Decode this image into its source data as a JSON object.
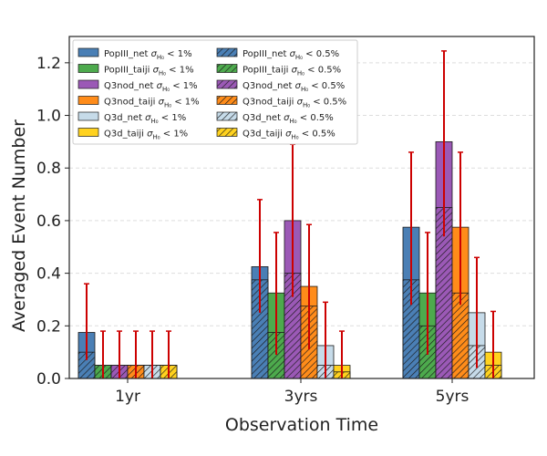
{
  "chart_data": {
    "type": "bar",
    "xlabel": "Observation Time",
    "ylabel": "Averaged Event Number",
    "categories": [
      "1yr",
      "3yrs",
      "5yrs"
    ],
    "ylim": [
      0,
      1.3
    ],
    "yticks": [
      "0.0",
      "0.2",
      "0.4",
      "0.6",
      "0.8",
      "1.0",
      "1.2"
    ],
    "grid": "horizontal-dashed",
    "legend_position": "top-left",
    "error_bar_color": "#cc0000",
    "series": [
      {
        "key": "PopIII_net",
        "name_prefix": "PopIII_net",
        "color": "#4a7fb5",
        "values_1pct": [
          0.175,
          0.425,
          0.575
        ],
        "values_half_pct": [
          0.1,
          0.375,
          0.375
        ],
        "err_low": [
          0.07,
          0.25,
          0.28
        ],
        "err_high": [
          0.36,
          0.68,
          0.86
        ]
      },
      {
        "key": "PopIII_taiji",
        "name_prefix": "PopIII_taiji",
        "color": "#4daa4d",
        "values_1pct": [
          0.05,
          0.325,
          0.325
        ],
        "values_half_pct": [
          0.05,
          0.175,
          0.2
        ],
        "err_low": [
          0.0,
          0.09,
          0.09
        ],
        "err_high": [
          0.18,
          0.555,
          0.555
        ]
      },
      {
        "key": "Q3nod_net",
        "name_prefix": "Q3nod_net",
        "color": "#9b59b6",
        "values_1pct": [
          0.05,
          0.6,
          0.9
        ],
        "values_half_pct": [
          0.05,
          0.4,
          0.65
        ],
        "err_low": [
          0.0,
          0.31,
          0.54
        ],
        "err_high": [
          0.18,
          0.89,
          1.245
        ]
      },
      {
        "key": "Q3nod_taiji",
        "name_prefix": "Q3nod_taiji",
        "color": "#ff8c1a",
        "values_1pct": [
          0.05,
          0.35,
          0.575
        ],
        "values_half_pct": [
          0.05,
          0.275,
          0.325
        ],
        "err_low": [
          0.0,
          0.11,
          0.28
        ],
        "err_high": [
          0.18,
          0.585,
          0.86
        ]
      },
      {
        "key": "Q3d_net",
        "name_prefix": "Q3d_net",
        "color": "#c6dbe9",
        "values_1pct": [
          0.05,
          0.125,
          0.25
        ],
        "values_half_pct": [
          0.05,
          0.05,
          0.125
        ],
        "err_low": [
          0.0,
          0.0,
          0.04
        ],
        "err_high": [
          0.18,
          0.29,
          0.46
        ]
      },
      {
        "key": "Q3d_taiji",
        "name_prefix": "Q3d_taiji",
        "color": "#ffd21f",
        "values_1pct": [
          0.05,
          0.05,
          0.1
        ],
        "values_half_pct": [
          0.05,
          0.025,
          0.05
        ],
        "err_low": [
          0.0,
          0.0,
          0.0
        ],
        "err_high": [
          0.18,
          0.18,
          0.255
        ]
      }
    ],
    "legend_suffix_1pct": " < 1%",
    "legend_suffix_half_pct": " < 0.5%",
    "legend_sigma_label": "σ",
    "legend_sigma_subscript": "H₀"
  }
}
